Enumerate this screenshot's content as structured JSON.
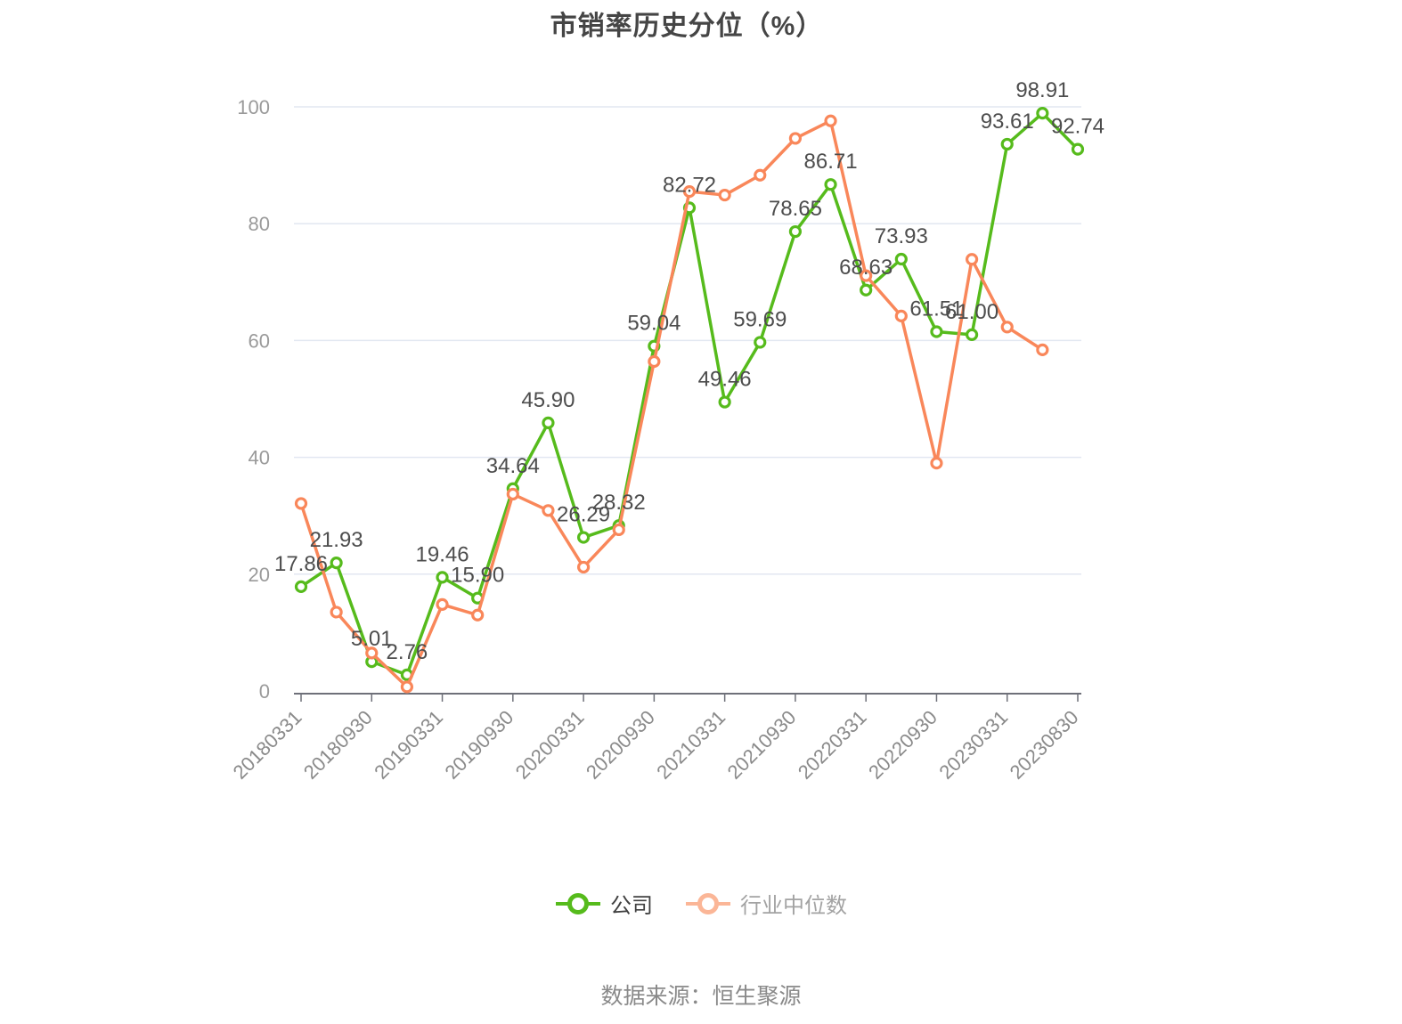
{
  "chart_data": {
    "type": "line",
    "title": "市销率历史分位（%）",
    "source_note": "数据来源：恒生聚源",
    "ylim": [
      0,
      100
    ],
    "y_ticks": [
      "0",
      "20",
      "40",
      "60",
      "80",
      "100"
    ],
    "grid": true,
    "legend_position": "bottom-center",
    "grid_color": "#E2E7F1",
    "axis_color": "#6E7079",
    "y_tick_label_color": "#9A9A9A",
    "x_tick_label_color": "#8A8A8A",
    "point_label_color": "#4D4D4D",
    "x_tick_labels": [
      {
        "i": 0,
        "label": "20180331"
      },
      {
        "i": 2,
        "label": "20180930"
      },
      {
        "i": 4,
        "label": "20190331"
      },
      {
        "i": 6,
        "label": "20190930"
      },
      {
        "i": 8,
        "label": "20200331"
      },
      {
        "i": 10,
        "label": "20200930"
      },
      {
        "i": 12,
        "label": "20210331"
      },
      {
        "i": 14,
        "label": "20210930"
      },
      {
        "i": 16,
        "label": "20220331"
      },
      {
        "i": 18,
        "label": "20220930"
      },
      {
        "i": 20,
        "label": "20230331"
      },
      {
        "i": 22,
        "label": "20230830"
      }
    ],
    "series": [
      {
        "key": "company",
        "name": "公司",
        "color": "#56BB1C",
        "legend_icon_color": "#56BB1C",
        "legend_text_color": "#404040",
        "show_point_labels": true,
        "values": [
          17.86,
          21.93,
          5.01,
          2.76,
          19.46,
          15.9,
          34.64,
          45.9,
          26.29,
          28.32,
          59.04,
          82.72,
          49.46,
          59.69,
          78.65,
          86.71,
          68.63,
          73.93,
          61.51,
          61.0,
          93.61,
          98.91,
          92.74
        ]
      },
      {
        "key": "industry-median",
        "name": "行业中位数",
        "color": "#F9875A",
        "legend_icon_color": "#FBB697",
        "legend_text_color": "#A3A3A3",
        "show_point_labels": false,
        "values": [
          32.1,
          13.5,
          6.5,
          0.7,
          14.8,
          13.0,
          33.7,
          30.9,
          21.2,
          27.6,
          56.4,
          85.5,
          84.9,
          88.3,
          94.6,
          97.6,
          71.1,
          64.2,
          39.0,
          73.9,
          62.3,
          58.4
        ]
      }
    ]
  }
}
